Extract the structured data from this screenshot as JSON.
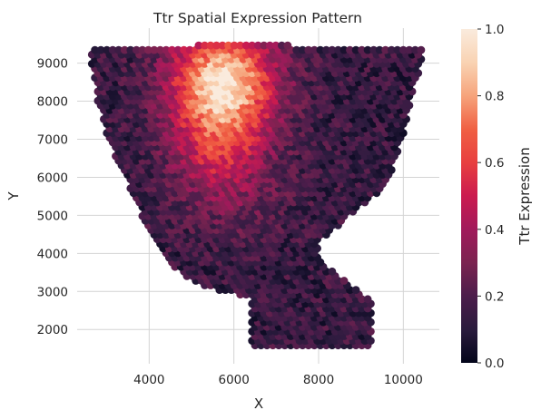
{
  "chart_data": {
    "type": "scatter",
    "title": "Ttr Spatial Expression Pattern",
    "xlabel": "X",
    "ylabel": "Y",
    "xlim": [
      2300,
      10850
    ],
    "ylim": [
      1100,
      9920
    ],
    "xticks": [
      4000,
      6000,
      8000,
      10000
    ],
    "yticks": [
      2000,
      3000,
      4000,
      5000,
      6000,
      7000,
      8000,
      9000
    ],
    "grid": true,
    "colormap": "rocket",
    "colormap_stops": [
      "#03051a",
      "#2a1b3d",
      "#4c1d4b",
      "#7b2350",
      "#a11a5b",
      "#cb1b4f",
      "#e83f3f",
      "#f06043",
      "#f6a47c",
      "#f9d3b3",
      "#faebdd"
    ],
    "colorbar": {
      "label": "Ttr Expression",
      "range": [
        0.0,
        1.0
      ],
      "ticks": [
        "0.0",
        "0.2",
        "0.4",
        "0.6",
        "0.8",
        "1.0"
      ]
    },
    "spot_spacing": 140,
    "tissue_outline": [
      [
        2650,
        9350
      ],
      [
        4000,
        9450
      ],
      [
        6200,
        9480
      ],
      [
        8500,
        9450
      ],
      [
        10500,
        9380
      ],
      [
        10380,
        8800
      ],
      [
        10150,
        7900
      ],
      [
        9950,
        6900
      ],
      [
        9600,
        5800
      ],
      [
        8800,
        5050
      ],
      [
        8020,
        4300
      ],
      [
        7980,
        3900
      ],
      [
        8700,
        3200
      ],
      [
        9250,
        2800
      ],
      [
        9250,
        1480
      ],
      [
        6400,
        1480
      ],
      [
        6400,
        2850
      ],
      [
        5200,
        3150
      ],
      [
        4700,
        3500
      ],
      [
        3950,
        4550
      ],
      [
        3750,
        5200
      ],
      [
        3450,
        5950
      ],
      [
        3050,
        6900
      ],
      [
        2800,
        7900
      ],
      [
        2650,
        8800
      ]
    ],
    "hotspots": [
      {
        "x": 5750,
        "y": 8450,
        "sx": 850,
        "sy": 1000,
        "amplitude": 0.85
      },
      {
        "x": 5650,
        "y": 6600,
        "sx": 800,
        "sy": 700,
        "amplitude": 0.28
      },
      {
        "x": 6000,
        "y": 5300,
        "sx": 900,
        "sy": 650,
        "amplitude": 0.12
      }
    ],
    "baseline_expression": 0.14
  }
}
